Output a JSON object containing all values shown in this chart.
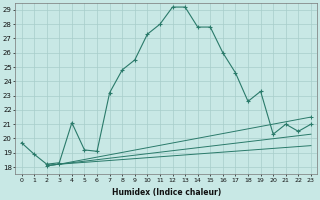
{
  "xlabel": "Humidex (Indice chaleur)",
  "ylabel": "",
  "xlim": [
    -0.5,
    23.5
  ],
  "ylim": [
    17.5,
    29.5
  ],
  "xtick_labels": [
    "0",
    "1",
    "2",
    "3",
    "4",
    "5",
    "6",
    "7",
    "8",
    "9",
    "10",
    "11",
    "12",
    "13",
    "14",
    "15",
    "16",
    "17",
    "18",
    "19",
    "20",
    "21",
    "22",
    "23"
  ],
  "ytick_values": [
    18,
    19,
    20,
    21,
    22,
    23,
    24,
    25,
    26,
    27,
    28,
    29
  ],
  "background_color": "#c8e8e5",
  "grid_color": "#a8ceca",
  "line_color": "#2a7a6a",
  "line1_x": [
    0,
    1,
    2,
    3,
    4,
    5,
    6,
    7,
    8,
    9,
    10,
    11,
    12,
    13,
    14,
    15,
    16,
    17,
    18,
    19,
    20,
    21,
    22,
    23
  ],
  "line1_y": [
    19.7,
    18.9,
    18.2,
    18.3,
    21.1,
    19.2,
    19.1,
    23.2,
    24.8,
    25.5,
    27.3,
    28.0,
    29.2,
    29.2,
    27.8,
    27.8,
    26.0,
    24.6,
    22.6,
    23.3,
    20.3,
    21.0,
    20.5,
    21.0
  ],
  "line2_x": [
    2,
    3,
    23
  ],
  "line2_y": [
    18.1,
    18.2,
    21.5
  ],
  "line3_x": [
    2,
    3,
    23
  ],
  "line3_y": [
    18.1,
    18.2,
    20.3
  ],
  "line4_x": [
    2,
    3,
    23
  ],
  "line4_y": [
    18.1,
    18.2,
    19.5
  ]
}
